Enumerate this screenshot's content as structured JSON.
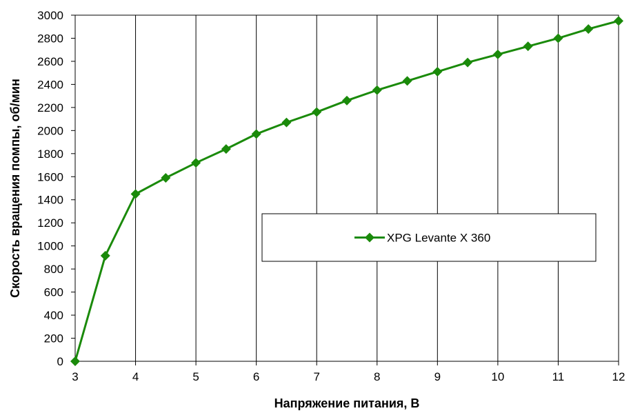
{
  "chart_data": {
    "type": "line",
    "xlabel": "Напряжение питания, В",
    "ylabel": "Скорость вращения помпы, об/мин",
    "xlim": [
      3,
      12
    ],
    "ylim": [
      0,
      3000
    ],
    "x_ticks": [
      3,
      4,
      5,
      6,
      7,
      8,
      9,
      10,
      11,
      12
    ],
    "y_ticks": [
      0,
      200,
      400,
      600,
      800,
      1000,
      1200,
      1400,
      1600,
      1800,
      2000,
      2200,
      2400,
      2600,
      2800,
      3000
    ],
    "grid": "vertical",
    "legend_position": "center-right",
    "series": [
      {
        "name": "XPG Levante X 360",
        "color": "#1a8a0a",
        "marker": "diamond",
        "x": [
          3,
          3.5,
          4,
          4.5,
          5,
          5.5,
          6,
          6.5,
          7,
          7.5,
          8,
          8.5,
          9,
          9.5,
          10,
          10.5,
          11,
          11.5,
          12
        ],
        "y": [
          0,
          915,
          1450,
          1590,
          1720,
          1840,
          1970,
          2070,
          2160,
          2260,
          2350,
          2430,
          2510,
          2590,
          2660,
          2730,
          2800,
          2880,
          2950
        ]
      }
    ]
  }
}
